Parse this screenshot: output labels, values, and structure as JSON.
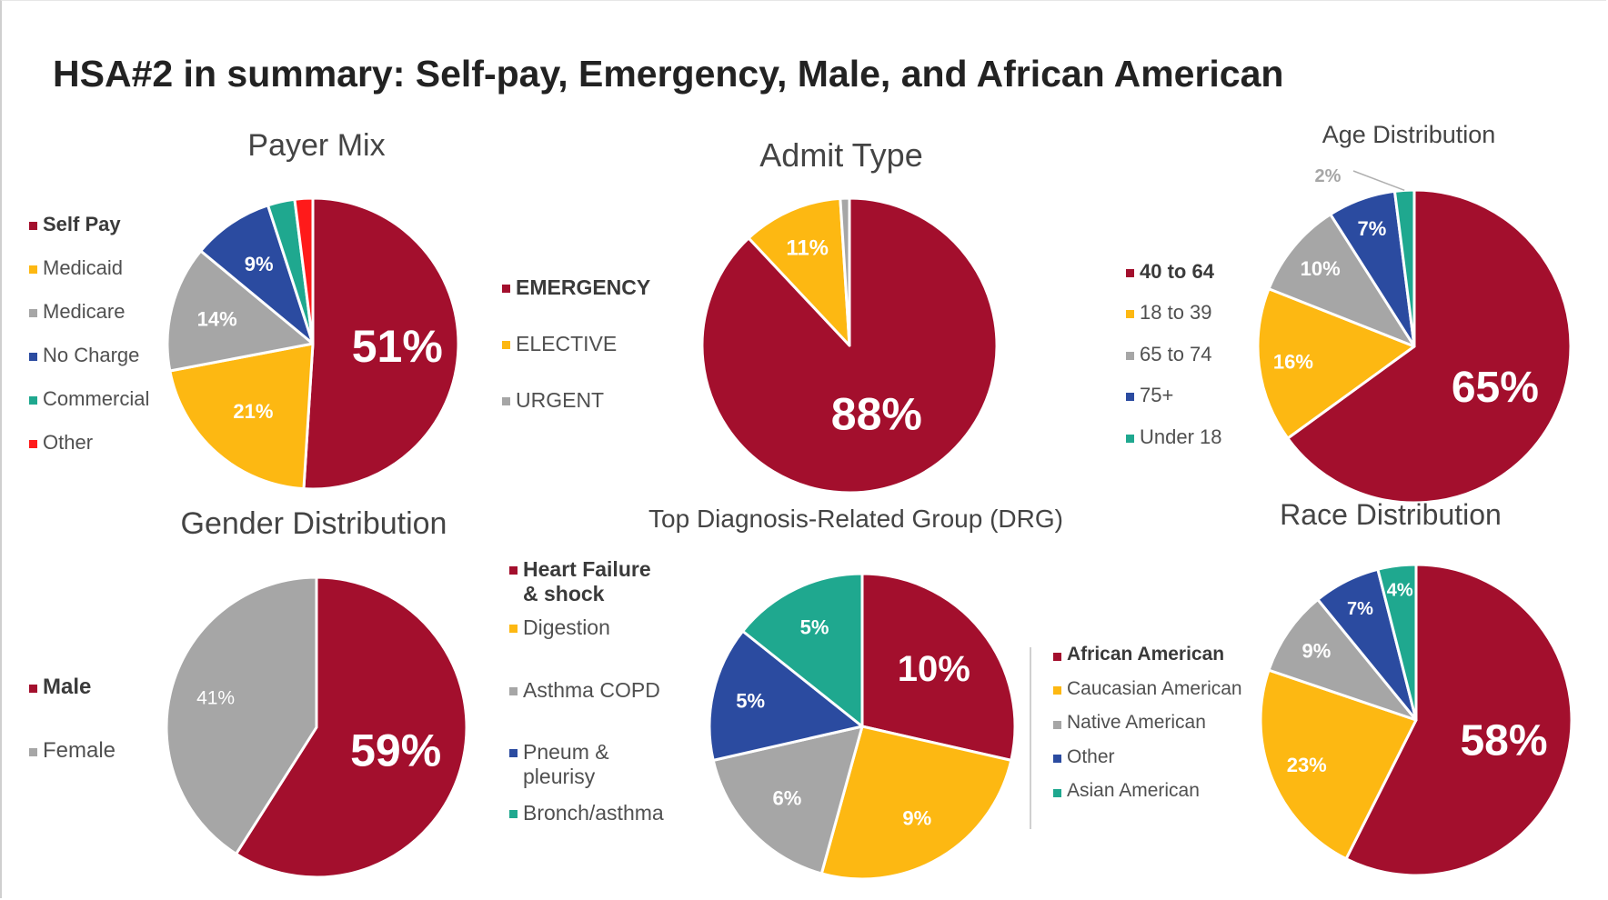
{
  "title": "HSA#2 in summary: Self-pay, Emergency, Male, and African American",
  "colors": {
    "crimson": "#A30F2D",
    "gold": "#FDB812",
    "gray": "#A6A6A6",
    "navy": "#2B4BA0",
    "teal": "#1FA88F",
    "red": "#FF1A1A"
  },
  "chart_data": [
    {
      "id": "payer",
      "type": "pie",
      "title": "Payer Mix",
      "categories": [
        "Self Pay",
        "Medicaid",
        "Medicare",
        "No Charge",
        "Commercial",
        "Other"
      ],
      "values": [
        51,
        21,
        14,
        9,
        3,
        2
      ],
      "value_labels": [
        "51%",
        "21%",
        "14%",
        "9%",
        "",
        ""
      ],
      "colors": [
        "#A30F2D",
        "#FDB812",
        "#A6A6A6",
        "#2B4BA0",
        "#1FA88F",
        "#FF1A1A"
      ],
      "legend": "left",
      "legend_highlight": [
        "Self Pay"
      ]
    },
    {
      "id": "admit",
      "type": "pie",
      "title": "Admit Type",
      "categories": [
        "EMERGENCY",
        "ELECTIVE",
        "URGENT"
      ],
      "values": [
        88,
        11,
        1
      ],
      "value_labels": [
        "88%",
        "11%",
        ""
      ],
      "colors": [
        "#A30F2D",
        "#FDB812",
        "#A6A6A6"
      ],
      "legend": "left",
      "legend_highlight": [
        "EMERGENCY"
      ]
    },
    {
      "id": "age",
      "type": "pie",
      "title": "Age Distribution",
      "categories": [
        "40 to 64",
        "18 to 39",
        "65 to 74",
        "75+",
        "Under 18"
      ],
      "values": [
        65,
        16,
        10,
        7,
        2
      ],
      "value_labels": [
        "65%",
        "16%",
        "10%",
        "7%",
        "2%"
      ],
      "colors": [
        "#A30F2D",
        "#FDB812",
        "#A6A6A6",
        "#2B4BA0",
        "#1FA88F"
      ],
      "legend": "left",
      "legend_highlight": [
        "40 to 64"
      ]
    },
    {
      "id": "gender",
      "type": "pie",
      "title": "Gender Distribution",
      "categories": [
        "Male",
        "Female"
      ],
      "values": [
        59,
        41
      ],
      "value_labels": [
        "59%",
        "41%"
      ],
      "colors": [
        "#A30F2D",
        "#A6A6A6"
      ],
      "legend": "left",
      "legend_highlight": [
        "Male"
      ]
    },
    {
      "id": "drg",
      "type": "pie",
      "title": "Top Diagnosis-Related Group (DRG)",
      "categories": [
        "Heart Failure & shock",
        "Digestion",
        "Asthma COPD",
        "Pneum & pleurisy",
        "Bronch/asthma"
      ],
      "values": [
        10,
        9,
        6,
        5,
        5
      ],
      "value_labels": [
        "10%",
        "9%",
        "6%",
        "5%",
        "5%"
      ],
      "colors": [
        "#A30F2D",
        "#FDB812",
        "#A6A6A6",
        "#2B4BA0",
        "#1FA88F"
      ],
      "legend": "left",
      "legend_highlight": [
        "Heart Failure & shock"
      ]
    },
    {
      "id": "race",
      "type": "pie",
      "title": "Race Distribution",
      "categories": [
        "African American",
        "Caucasian American",
        "Native American",
        "Other",
        "Asian American"
      ],
      "values": [
        58,
        23,
        9,
        7,
        4
      ],
      "value_labels": [
        "58%",
        "23%",
        "9%",
        "7%",
        "4%"
      ],
      "colors": [
        "#A30F2D",
        "#FDB812",
        "#A6A6A6",
        "#2B4BA0",
        "#1FA88F"
      ],
      "legend": "left",
      "legend_highlight": [
        "African American"
      ]
    }
  ]
}
